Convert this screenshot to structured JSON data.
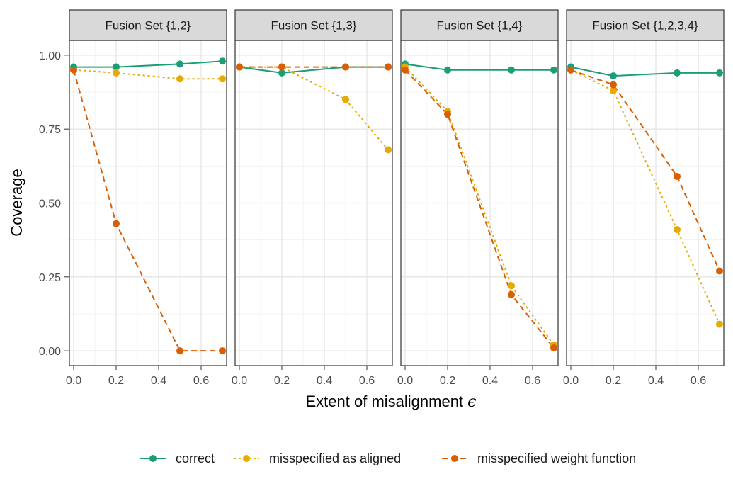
{
  "chart_data": {
    "type": "line",
    "x": [
      0.0,
      0.2,
      0.5,
      0.7
    ],
    "xlabel": "Extent of misalignment",
    "xlabel_symbol": "ϵ",
    "ylabel": "Coverage",
    "xlim": [
      -0.02,
      0.72
    ],
    "ylim": [
      -0.05,
      1.05
    ],
    "xticks": [
      0.0,
      0.2,
      0.4,
      0.6
    ],
    "xtick_labels": [
      "0.0",
      "0.2",
      "0.4",
      "0.6"
    ],
    "yticks": [
      0.0,
      0.25,
      0.5,
      0.75,
      1.0
    ],
    "ytick_labels": [
      "0.00",
      "0.25",
      "0.50",
      "0.75",
      "1.00"
    ],
    "grid": true,
    "legend_position": "bottom",
    "series_styles": [
      {
        "name": "correct",
        "color": "#1b9e77",
        "dash": "solid"
      },
      {
        "name": "misspecified as aligned",
        "color": "#e6ab02",
        "dash": "dotted"
      },
      {
        "name": "misspecified weight function",
        "color": "#d95f02",
        "dash": "dashed"
      }
    ],
    "panels": [
      {
        "title": "Fusion Set {1,2}",
        "series": [
          {
            "name": "correct",
            "values": [
              0.96,
              0.96,
              0.97,
              0.98
            ]
          },
          {
            "name": "misspecified as aligned",
            "values": [
              0.95,
              0.94,
              0.92,
              0.92
            ]
          },
          {
            "name": "misspecified weight function",
            "values": [
              0.95,
              0.43,
              0.0,
              0.0
            ]
          }
        ]
      },
      {
        "title": "Fusion Set {1,3}",
        "series": [
          {
            "name": "correct",
            "values": [
              0.96,
              0.94,
              0.96,
              0.96
            ]
          },
          {
            "name": "misspecified as aligned",
            "values": [
              0.96,
              0.96,
              0.85,
              0.68
            ]
          },
          {
            "name": "misspecified weight function",
            "values": [
              0.96,
              0.96,
              0.96,
              0.96
            ]
          }
        ]
      },
      {
        "title": "Fusion Set {1,4}",
        "series": [
          {
            "name": "correct",
            "values": [
              0.97,
              0.95,
              0.95,
              0.95
            ]
          },
          {
            "name": "misspecified as aligned",
            "values": [
              0.96,
              0.81,
              0.22,
              0.02
            ]
          },
          {
            "name": "misspecified weight function",
            "values": [
              0.95,
              0.8,
              0.19,
              0.01
            ]
          }
        ]
      },
      {
        "title": "Fusion Set {1,2,3,4}",
        "series": [
          {
            "name": "correct",
            "values": [
              0.96,
              0.93,
              0.94,
              0.94
            ]
          },
          {
            "name": "misspecified as aligned",
            "values": [
              0.95,
              0.88,
              0.41,
              0.09
            ]
          },
          {
            "name": "misspecified weight function",
            "values": [
              0.95,
              0.9,
              0.59,
              0.27
            ]
          }
        ]
      }
    ]
  }
}
